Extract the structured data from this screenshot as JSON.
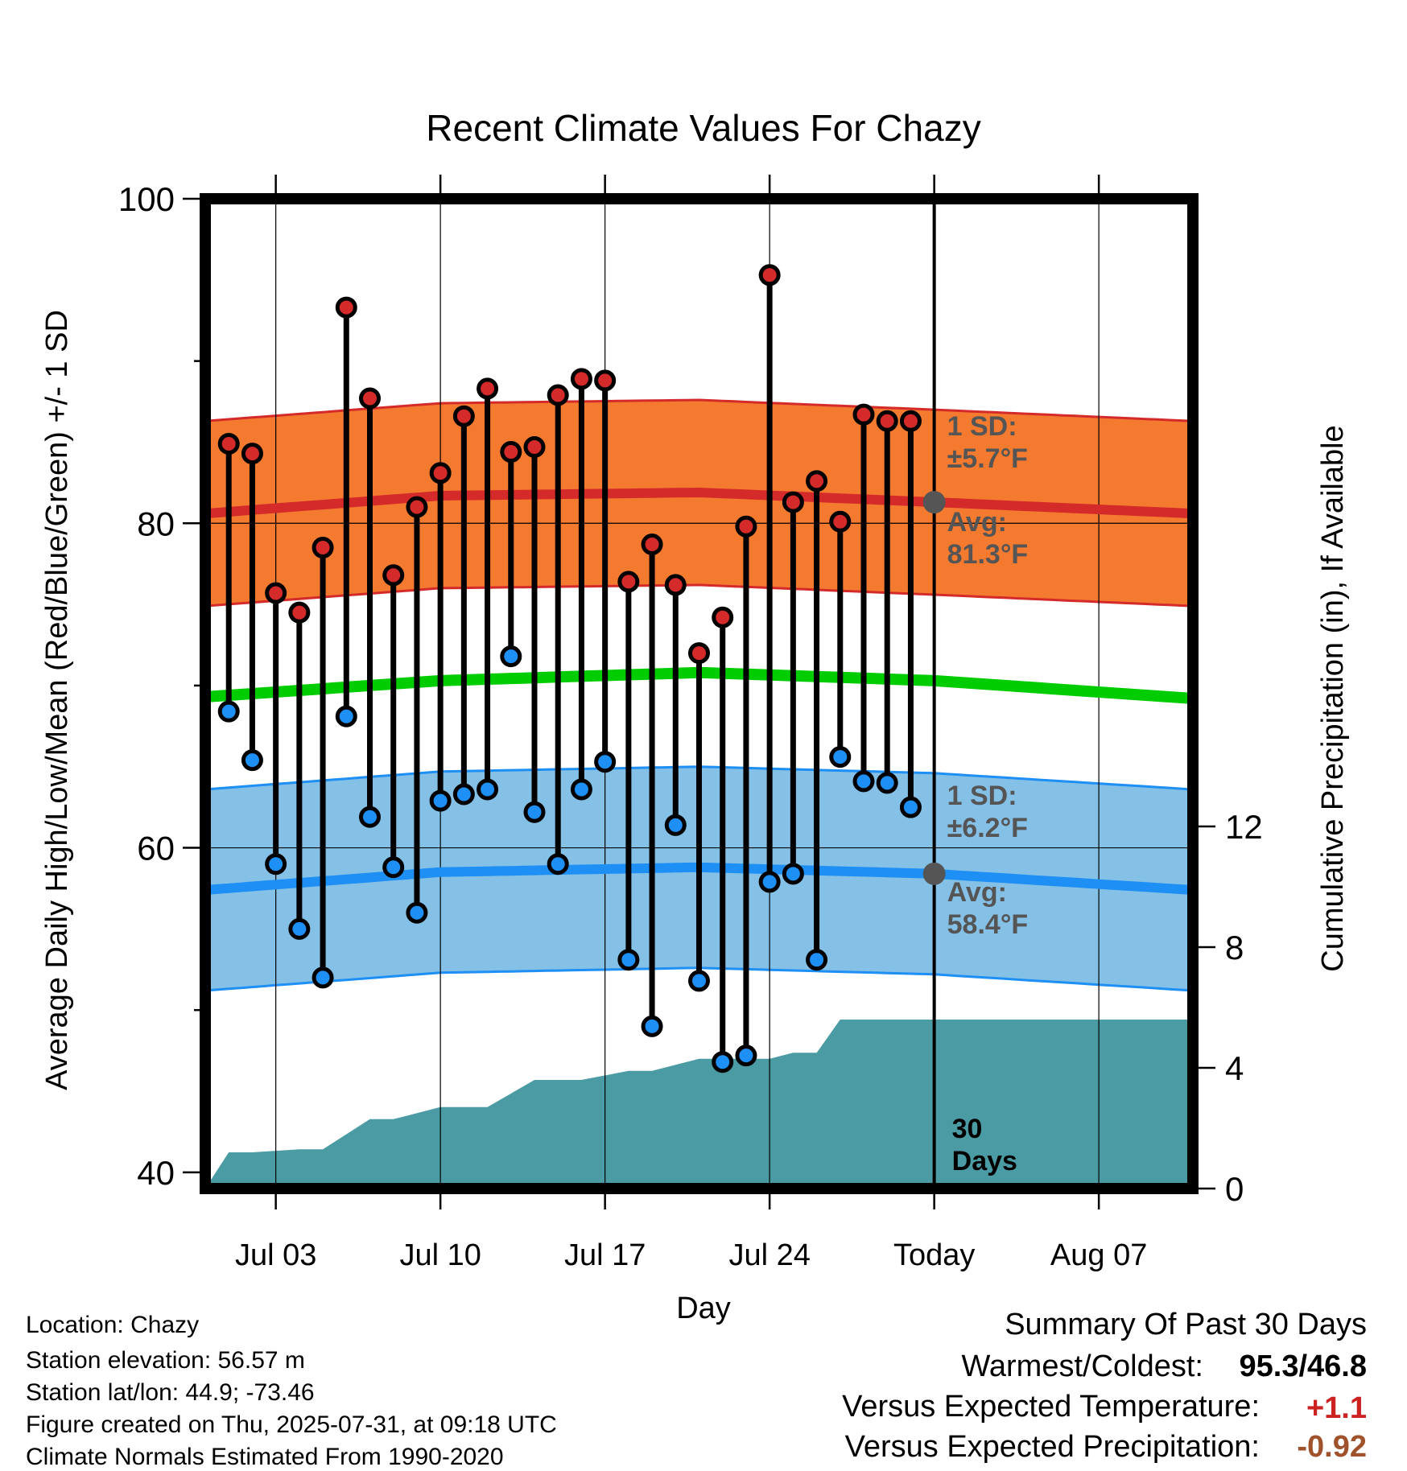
{
  "chart_data": {
    "type": "line",
    "title": "Recent Climate Values For Chazy",
    "xlabel": "Day",
    "ylabel": "Average Daily High/Low/Mean (Red/Blue/Green) +/- 1 SD",
    "y2label": "Cumulative Precipitation (in), If Available",
    "ylim": [
      39,
      100
    ],
    "y2lim": [
      0,
      32.8
    ],
    "yticks": [
      "40",
      "60",
      "80",
      "100"
    ],
    "y2ticks": [
      "0",
      "4",
      "8",
      "12"
    ],
    "xrange_days": [
      -31,
      11
    ],
    "xticks": [
      {
        "day": -28,
        "label": "Jul 03"
      },
      {
        "day": -21,
        "label": "Jul 10"
      },
      {
        "day": -14,
        "label": "Jul 17"
      },
      {
        "day": -7,
        "label": "Jul 24"
      },
      {
        "day": 0,
        "label": "Today"
      },
      {
        "day": 7,
        "label": "Aug 07"
      }
    ],
    "highs": [
      84.9,
      84.3,
      75.7,
      74.5,
      78.5,
      93.3,
      87.7,
      76.8,
      81.0,
      83.1,
      86.6,
      88.3,
      84.4,
      84.7,
      87.9,
      88.9,
      88.8,
      76.4,
      78.7,
      76.2,
      72.0,
      74.2,
      79.8,
      95.3,
      81.3,
      82.6,
      80.1,
      86.7,
      86.3,
      86.3
    ],
    "lows": [
      68.4,
      65.4,
      59.0,
      55.0,
      52.0,
      68.1,
      61.9,
      58.8,
      56.0,
      62.9,
      63.3,
      63.6,
      71.8,
      62.2,
      59.0,
      63.6,
      65.3,
      53.1,
      49.0,
      61.4,
      51.8,
      46.8,
      47.2,
      57.9,
      58.4,
      53.1,
      65.6,
      64.1,
      64.0,
      62.5
    ],
    "normal_high": {
      "days": [
        -31,
        -21,
        -10,
        0,
        11
      ],
      "mean": [
        80.6,
        81.7,
        81.9,
        81.3,
        80.6
      ],
      "sd": 5.7
    },
    "normal_low": {
      "days": [
        -31,
        -21,
        -10,
        0,
        11
      ],
      "mean": [
        57.4,
        58.5,
        58.8,
        58.4,
        57.4
      ],
      "sd": 6.2
    },
    "normal_mean": {
      "days": [
        -31,
        -21,
        -10,
        0,
        11
      ],
      "values": [
        69.3,
        70.3,
        70.8,
        70.3,
        69.2
      ]
    },
    "precip": {
      "days": [
        -31,
        -30,
        -29,
        -27,
        -26,
        -24,
        -23,
        -21,
        -20,
        -19,
        -17,
        -16,
        -15,
        -13,
        -12,
        -10,
        -9,
        -8,
        -7,
        -6,
        -5,
        -4,
        -3,
        0,
        11
      ],
      "values": [
        0,
        1.2,
        1.2,
        1.3,
        1.3,
        2.3,
        2.3,
        2.7,
        2.7,
        2.7,
        3.6,
        3.6,
        3.6,
        3.9,
        3.9,
        4.3,
        4.3,
        4.3,
        4.3,
        4.5,
        4.5,
        5.6,
        5.6,
        5.6,
        5.6
      ]
    },
    "annotations": {
      "high_sd": "1 SD:\n±5.7°F",
      "high_avg": "Avg:\n81.3°F",
      "low_sd": "1 SD:\n±6.2°F",
      "low_avg": "Avg:\n58.4°F",
      "days": "30\nDays"
    },
    "colors": {
      "high_band": "#f47a30",
      "high_line": "#d42a2a",
      "high_marker": "#d42a2a",
      "low_band": "#85c0e6",
      "low_line": "#1e8ff5",
      "low_marker": "#1e8ff5",
      "mean_line": "#00cc00",
      "precip": "#4a9ba3",
      "avg_dot": "#555555",
      "annotation_text": "#555555"
    }
  },
  "station": {
    "location": "Location: Chazy",
    "elevation": "Station elevation: 56.57 m",
    "latlon": "Station lat/lon: 44.9; -73.46",
    "created": "Figure created on Thu, 2025-07-31, at 09:18 UTC",
    "normals": "Climate Normals Estimated From 1990-2020"
  },
  "summary": {
    "title": "Summary Of Past 30 Days",
    "warm_cold_label": "Warmest/Coldest:",
    "warm_cold_value": "95.3/46.8",
    "temp_label": "Versus Expected Temperature:",
    "temp_value": "+1.1",
    "temp_color": "#cc2222",
    "precip_label": "Versus Expected Precipitation:",
    "precip_value": "-0.92",
    "precip_color": "#a0522d"
  }
}
